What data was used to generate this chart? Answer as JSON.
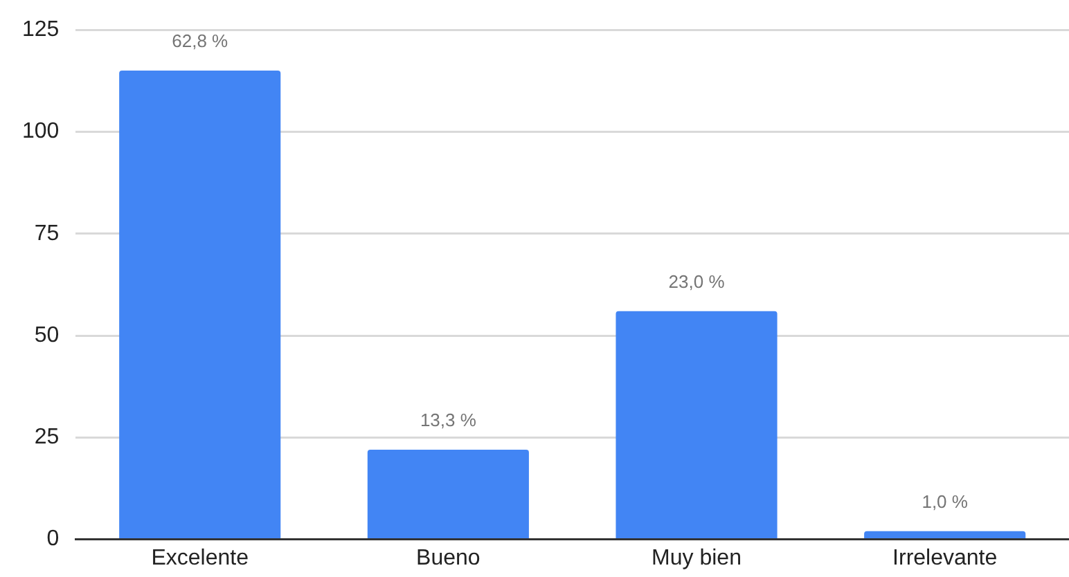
{
  "chart_data": {
    "type": "bar",
    "categories": [
      "Excelente",
      "Bueno",
      "Muy bien",
      "Irrelevante"
    ],
    "values": [
      115,
      22,
      56,
      2
    ],
    "color": "#4285f4",
    "annotations": [
      {
        "text": "62,8 %",
        "x": "Excelente",
        "y": 115
      },
      {
        "text": "13,3 %",
        "x": "Bueno",
        "y": 22
      },
      {
        "text": "23,0 %",
        "x": "Muy bien",
        "y": 56
      },
      {
        "text": "1,0 %",
        "x": "Irrelevante",
        "y": 2
      }
    ],
    "ylim": [
      0,
      125
    ],
    "yticks": [
      0,
      25,
      50,
      75,
      100,
      125
    ],
    "grid": "y",
    "legend": false
  }
}
